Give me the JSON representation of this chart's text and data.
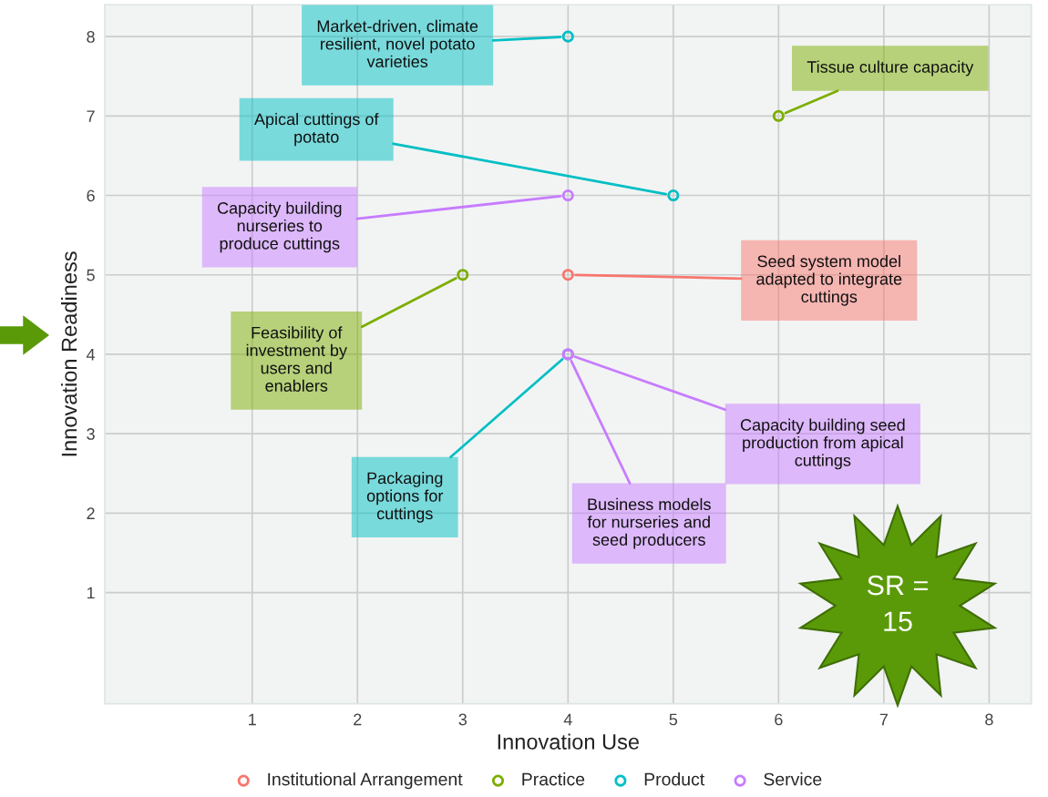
{
  "chart_data": {
    "type": "scatter",
    "xlabel": "Innovation Use",
    "ylabel": "Innovation Readiness",
    "xlim": [
      -0.4,
      8.4
    ],
    "ylim": [
      -0.4,
      8.4
    ],
    "xticks": [
      1,
      2,
      3,
      4,
      5,
      6,
      7,
      8
    ],
    "yticks": [
      1,
      2,
      3,
      4,
      5,
      6,
      7,
      8
    ],
    "grid": true,
    "legend": "bottom",
    "marker": "circle",
    "series": [
      {
        "name": "Institutional Arrangement",
        "color": "#f8766d",
        "x": [
          4
        ],
        "values": [
          5
        ],
        "value_labels": [
          "Seed system model\nadapted to integrate\ncuttings"
        ]
      },
      {
        "name": "Practice",
        "color": "#7cae00",
        "x": [
          3,
          6
        ],
        "values": [
          5,
          7
        ],
        "value_labels": [
          "Feasibility of\ninvestment by\nusers and\nenablers",
          "Tissue culture capacity"
        ]
      },
      {
        "name": "Product",
        "color": "#00bfc4",
        "x": [
          4,
          5,
          4
        ],
        "values": [
          8,
          6,
          4
        ],
        "value_labels": [
          "Market-driven, climate\nresilient, novel potato\nvarieties",
          "Apical cuttings of\npotato",
          "Packaging\noptions for\ncuttings"
        ]
      },
      {
        "name": "Service",
        "color": "#c77cff",
        "x": [
          4,
          4,
          4
        ],
        "values": [
          6,
          4,
          4
        ],
        "value_labels": [
          "Capacity building\nnurseries to\nproduce cuttings",
          "Capacity building seed\nproduction from apical\ncuttings",
          "Business models\nfor nurseries and\nseed producers"
        ]
      }
    ],
    "annotations": [
      "SR =\n15"
    ]
  }
}
